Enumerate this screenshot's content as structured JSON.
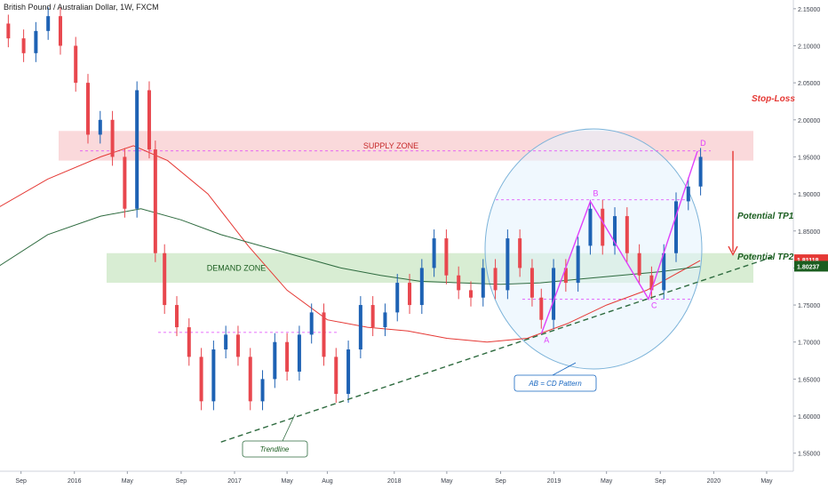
{
  "chart_data": {
    "type": "candlestick",
    "title": "British Pound / Australian Dollar, 1W, FXCM",
    "y_axis": {
      "position": "right",
      "ticks": [
        2.15,
        2.1,
        2.05,
        2.0,
        1.95,
        1.9,
        1.85,
        1.8,
        1.75,
        1.7,
        1.65,
        1.6,
        1.55
      ],
      "tick_labels": [
        "2.15000",
        "2.10000",
        "2.05000",
        "2.00000",
        "1.95000",
        "1.90000",
        "1.85000",
        "1.80000",
        "1.75000",
        "1.70000",
        "1.65000",
        "1.60000",
        "1.55000"
      ],
      "range": [
        1.525,
        2.162
      ]
    },
    "x_axis": {
      "labels": [
        "Sep",
        "2016",
        "May",
        "Sep",
        "2017",
        "May",
        "Aug",
        "2018",
        "May",
        "Sep",
        "2019",
        "May",
        "Sep",
        "2020",
        "May"
      ],
      "time_range": [
        "2015-07",
        "2020-09"
      ]
    },
    "price_markers": [
      {
        "label": "1.81118",
        "color": "#e53935"
      },
      {
        "label": "1.80237",
        "color": "#1b5e20"
      }
    ],
    "zones": [
      {
        "name": "SUPPLY ZONE",
        "low": 1.945,
        "high": 1.985,
        "color": "#f8c9cc",
        "label_color": "#c62828"
      },
      {
        "name": "DEMAND ZONE",
        "low": 1.78,
        "high": 1.82,
        "color": "#c8e6c0",
        "label_color": "#1b5e20"
      }
    ],
    "annotations": [
      {
        "text": "Stop-Loss",
        "color": "#e53935"
      },
      {
        "text": "Potential TP1",
        "color": "#1b5e20"
      },
      {
        "text": "Potential TP2",
        "color": "#1b5e20"
      },
      {
        "text": "AB = CD Pattern",
        "color": "#1565c0"
      },
      {
        "text": "Trendline",
        "color": "#1b5e20"
      }
    ],
    "pattern_points": [
      {
        "label": "A",
        "date": "2018-12-03",
        "price": 1.711
      },
      {
        "label": "B",
        "date": "2019-03-25",
        "price": 1.89
      },
      {
        "label": "C",
        "date": "2019-08-05",
        "price": 1.758
      },
      {
        "label": "D",
        "date": "2019-11-25",
        "price": 1.958
      }
    ],
    "levels": [
      {
        "price": 1.892,
        "style": "dashed",
        "color": "#e040fb"
      },
      {
        "price": 1.758,
        "style": "dashed",
        "color": "#e040fb"
      },
      {
        "price": 1.713,
        "style": "dashed",
        "color": "#e040fb"
      },
      {
        "price": 1.958,
        "style": "dashed",
        "color": "#e040fb"
      }
    ],
    "trendline": {
      "from": {
        "date": "2016-12-01",
        "price": 1.565
      },
      "to": {
        "date": "2020-05-15",
        "price": 1.815
      }
    },
    "moving_averages": [
      {
        "color": "#e53935",
        "points": [
          [
            "2015-07-06",
            1.88
          ],
          [
            "2015-11-01",
            1.92
          ],
          [
            "2016-03-01",
            1.95
          ],
          [
            "2016-05-15",
            1.965
          ],
          [
            "2016-08-01",
            1.945
          ],
          [
            "2016-11-01",
            1.9
          ],
          [
            "2017-02-01",
            1.83
          ],
          [
            "2017-05-01",
            1.77
          ],
          [
            "2017-08-01",
            1.73
          ],
          [
            "2017-11-01",
            1.72
          ],
          [
            "2018-02-01",
            1.715
          ],
          [
            "2018-05-01",
            1.705
          ],
          [
            "2018-08-01",
            1.7
          ],
          [
            "2018-11-01",
            1.705
          ],
          [
            "2019-02-01",
            1.725
          ],
          [
            "2019-05-01",
            1.75
          ],
          [
            "2019-08-01",
            1.77
          ],
          [
            "2019-10-01",
            1.79
          ],
          [
            "2019-12-01",
            1.81
          ]
        ]
      },
      {
        "color": "#2e6b3f",
        "points": [
          [
            "2015-07-06",
            1.8
          ],
          [
            "2015-11-01",
            1.845
          ],
          [
            "2016-03-01",
            1.87
          ],
          [
            "2016-06-01",
            1.88
          ],
          [
            "2016-09-01",
            1.865
          ],
          [
            "2016-12-01",
            1.845
          ],
          [
            "2017-03-01",
            1.83
          ],
          [
            "2017-06-01",
            1.815
          ],
          [
            "2017-09-01",
            1.8
          ],
          [
            "2017-12-01",
            1.79
          ],
          [
            "2018-03-01",
            1.782
          ],
          [
            "2018-06-01",
            1.78
          ],
          [
            "2018-09-01",
            1.778
          ],
          [
            "2018-12-01",
            1.78
          ],
          [
            "2019-03-01",
            1.785
          ],
          [
            "2019-06-01",
            1.79
          ],
          [
            "2019-09-01",
            1.795
          ],
          [
            "2019-12-01",
            1.802
          ]
        ]
      }
    ],
    "ab_cd_path": [
      [
        "2018-12-03",
        1.711
      ],
      [
        "2019-03-25",
        1.89
      ],
      [
        "2019-08-05",
        1.758
      ],
      [
        "2019-11-25",
        1.958
      ]
    ],
    "candles": [
      [
        "2015-08-03",
        2.13,
        2.11
      ],
      [
        "2015-09-07",
        2.11,
        2.09
      ],
      [
        "2015-10-05",
        2.09,
        2.12
      ],
      [
        "2015-11-02",
        2.12,
        2.14
      ],
      [
        "2015-11-30",
        2.14,
        2.1
      ],
      [
        "2016-01-04",
        2.1,
        2.05
      ],
      [
        "2016-02-01",
        2.05,
        1.98
      ],
      [
        "2016-02-29",
        1.98,
        2.0
      ],
      [
        "2016-03-28",
        2.0,
        1.95
      ],
      [
        "2016-04-25",
        1.95,
        1.88
      ],
      [
        "2016-05-23",
        1.88,
        2.04
      ],
      [
        "2016-06-20",
        2.04,
        1.96
      ],
      [
        "2016-07-04",
        1.96,
        1.82
      ],
      [
        "2016-07-25",
        1.82,
        1.75
      ],
      [
        "2016-08-22",
        1.75,
        1.72
      ],
      [
        "2016-09-19",
        1.72,
        1.68
      ],
      [
        "2016-10-17",
        1.68,
        1.62
      ],
      [
        "2016-11-14",
        1.62,
        1.69
      ],
      [
        "2016-12-12",
        1.69,
        1.71
      ],
      [
        "2017-01-09",
        1.71,
        1.68
      ],
      [
        "2017-02-06",
        1.68,
        1.62
      ],
      [
        "2017-03-06",
        1.62,
        1.65
      ],
      [
        "2017-04-03",
        1.65,
        1.7
      ],
      [
        "2017-05-01",
        1.7,
        1.66
      ],
      [
        "2017-05-29",
        1.66,
        1.71
      ],
      [
        "2017-06-26",
        1.71,
        1.74
      ],
      [
        "2017-07-24",
        1.74,
        1.68
      ],
      [
        "2017-08-21",
        1.68,
        1.63
      ],
      [
        "2017-09-18",
        1.63,
        1.69
      ],
      [
        "2017-10-16",
        1.69,
        1.75
      ],
      [
        "2017-11-13",
        1.75,
        1.72
      ],
      [
        "2017-12-11",
        1.72,
        1.74
      ],
      [
        "2018-01-08",
        1.74,
        1.78
      ],
      [
        "2018-02-05",
        1.78,
        1.75
      ],
      [
        "2018-03-05",
        1.75,
        1.8
      ],
      [
        "2018-04-02",
        1.8,
        1.84
      ],
      [
        "2018-04-30",
        1.84,
        1.79
      ],
      [
        "2018-05-28",
        1.79,
        1.77
      ],
      [
        "2018-06-25",
        1.77,
        1.76
      ],
      [
        "2018-07-23",
        1.76,
        1.8
      ],
      [
        "2018-08-20",
        1.8,
        1.77
      ],
      [
        "2018-09-17",
        1.77,
        1.84
      ],
      [
        "2018-10-15",
        1.84,
        1.8
      ],
      [
        "2018-11-12",
        1.8,
        1.76
      ],
      [
        "2018-12-03",
        1.76,
        1.73
      ],
      [
        "2018-12-31",
        1.73,
        1.8
      ],
      [
        "2019-01-28",
        1.8,
        1.78
      ],
      [
        "2019-02-25",
        1.78,
        1.83
      ],
      [
        "2019-03-25",
        1.83,
        1.88
      ],
      [
        "2019-04-22",
        1.88,
        1.83
      ],
      [
        "2019-05-20",
        1.83,
        1.87
      ],
      [
        "2019-06-17",
        1.87,
        1.82
      ],
      [
        "2019-07-15",
        1.82,
        1.79
      ],
      [
        "2019-08-12",
        1.79,
        1.77
      ],
      [
        "2019-09-09",
        1.77,
        1.82
      ],
      [
        "2019-10-07",
        1.82,
        1.89
      ],
      [
        "2019-11-04",
        1.89,
        1.91
      ],
      [
        "2019-12-02",
        1.91,
        1.95
      ]
    ]
  }
}
